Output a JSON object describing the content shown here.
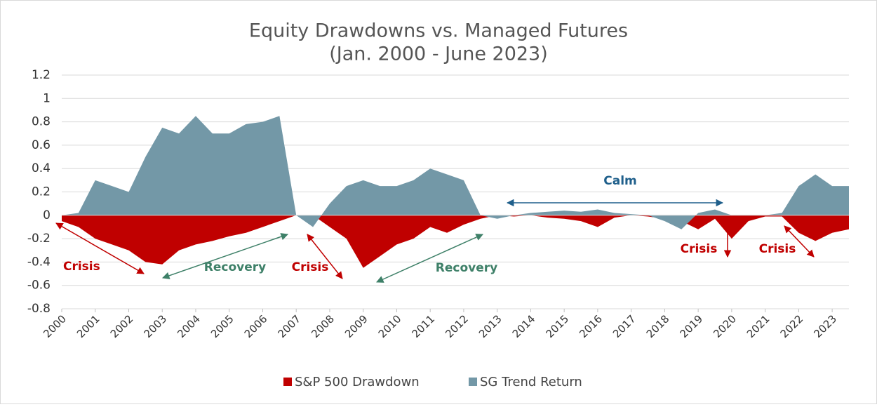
{
  "chart_data": {
    "type": "area",
    "title": "Equity Drawdowns vs. Managed Futures",
    "subtitle": "(Jan. 2000 - June 2023)",
    "x": [
      2000,
      2000.5,
      2001,
      2001.5,
      2002,
      2002.5,
      2003,
      2003.5,
      2004,
      2004.5,
      2005,
      2005.5,
      2006,
      2006.5,
      2007,
      2007.5,
      2008,
      2008.5,
      2009,
      2009.5,
      2010,
      2010.5,
      2011,
      2011.5,
      2012,
      2012.5,
      2013,
      2013.5,
      2014,
      2014.5,
      2015,
      2015.5,
      2016,
      2016.5,
      2017,
      2017.5,
      2018,
      2018.5,
      2019,
      2019.5,
      2020,
      2020.5,
      2021,
      2021.5,
      2022,
      2022.5,
      2023,
      2023.5
    ],
    "series": [
      {
        "name": "S&P 500 Drawdown",
        "color": "#c00000",
        "values": [
          -0.05,
          -0.1,
          -0.2,
          -0.25,
          -0.3,
          -0.4,
          -0.42,
          -0.3,
          -0.25,
          -0.22,
          -0.18,
          -0.15,
          -0.1,
          -0.05,
          0,
          0,
          -0.1,
          -0.2,
          -0.45,
          -0.35,
          -0.25,
          -0.2,
          -0.1,
          -0.15,
          -0.08,
          -0.03,
          0,
          -0.01,
          0,
          -0.02,
          -0.03,
          -0.05,
          -0.1,
          -0.02,
          0,
          -0.01,
          -0.03,
          -0.05,
          -0.12,
          -0.03,
          -0.2,
          -0.05,
          -0.01,
          -0.01,
          -0.15,
          -0.22,
          -0.15,
          -0.12
        ]
      },
      {
        "name": "SG Trend Return",
        "color": "#7398a7",
        "values": [
          0,
          0.02,
          0.3,
          0.25,
          0.2,
          0.5,
          0.75,
          0.7,
          0.85,
          0.7,
          0.7,
          0.78,
          0.8,
          0.85,
          0,
          -0.1,
          0.1,
          0.25,
          0.3,
          0.25,
          0.25,
          0.3,
          0.4,
          0.35,
          0.3,
          0,
          -0.03,
          0,
          0.02,
          0.03,
          0.04,
          0.03,
          0.05,
          0.02,
          0.01,
          0,
          -0.05,
          -0.12,
          0.02,
          0.05,
          0,
          0,
          0,
          0.02,
          0.25,
          0.35,
          0.25,
          0.25
        ]
      }
    ],
    "xlim": [
      2000,
      2023.5
    ],
    "xticks": [
      2000,
      2001,
      2002,
      2003,
      2004,
      2005,
      2006,
      2007,
      2008,
      2009,
      2010,
      2011,
      2012,
      2013,
      2014,
      2015,
      2016,
      2017,
      2018,
      2019,
      2020,
      2021,
      2022,
      2023
    ],
    "ylim": [
      -0.8,
      1.2
    ],
    "yticks": [
      1.2,
      1,
      0.8,
      0.6,
      0.4,
      0.2,
      0,
      -0.2,
      -0.4,
      -0.6,
      -0.8
    ],
    "grid": true,
    "legend": "bottom",
    "annotations": [
      "Crisis",
      "Recovery",
      "Crisis",
      "Recovery",
      "Calm",
      "Crisis",
      "Crisis"
    ]
  }
}
